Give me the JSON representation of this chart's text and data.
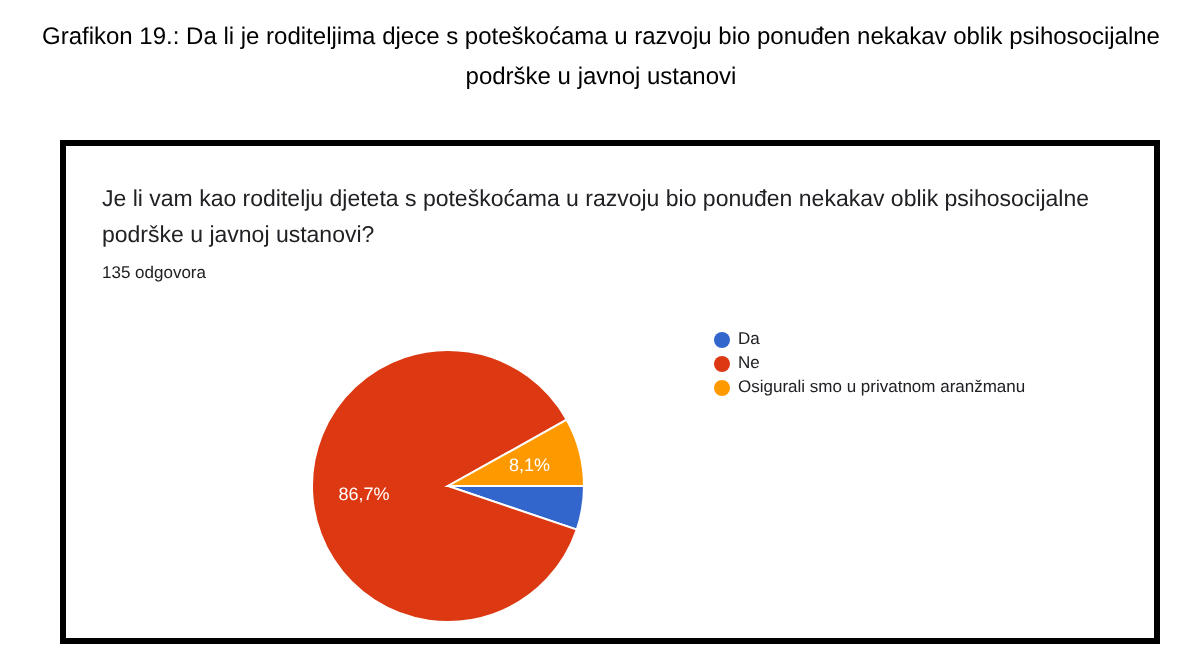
{
  "chart_data": {
    "type": "pie",
    "title": "Grafikon 19.: Da li je roditeljima djece s poteškoćama u razvoju bio ponuđen nekakav oblik psihosocijalne podrške u javnoj ustanovi",
    "subtitle": "Je li vam kao roditelju djeteta s poteškoćama u razvoju bio ponuđen nekakav oblik psihosocijalne podrške u javnoj ustanovi?",
    "annotations": [
      "135 odgovora"
    ],
    "categories": [
      "Da",
      "Ne",
      "Osigurali smo u privatnom aranžmanu"
    ],
    "values": [
      5.2,
      86.7,
      8.1
    ],
    "colors": [
      "#3366cc",
      "#dc3912",
      "#ff9900"
    ],
    "value_labels": [
      null,
      "86,7%",
      "8,1%"
    ],
    "legend": "right"
  }
}
